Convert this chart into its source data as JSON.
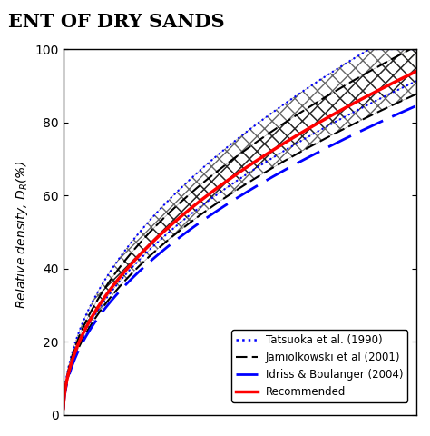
{
  "title": "ENT OF DRY SANDS",
  "ylabel": "Relative density, $D_R$(%)  ",
  "xlim": [
    0,
    17
  ],
  "ylim": [
    0,
    100
  ],
  "yticks": [
    0,
    20,
    40,
    60,
    80,
    100
  ],
  "background_color": "#ffffff",
  "legend_entries": [
    "Tatsuoka et al. (1990)",
    "Jamiolkowski et al (2001)",
    "Idriss & Boulanger (2004)",
    "Recommended"
  ],
  "curve_params": {
    "tatsuoka_lower_A": 5.8,
    "tatsuoka_lower_n": 0.62,
    "tatsuoka_upper_A": 8.5,
    "tatsuoka_upper_n": 0.62,
    "jamiolk_lower_A": 5.2,
    "jamiolk_lower_n": 0.62,
    "jamiolk_upper_A": 7.2,
    "jamiolk_upper_n": 0.62,
    "idriss_A": 4.5,
    "idriss_n": 0.62,
    "recommended_A": 6.2,
    "recommended_n": 0.62
  }
}
